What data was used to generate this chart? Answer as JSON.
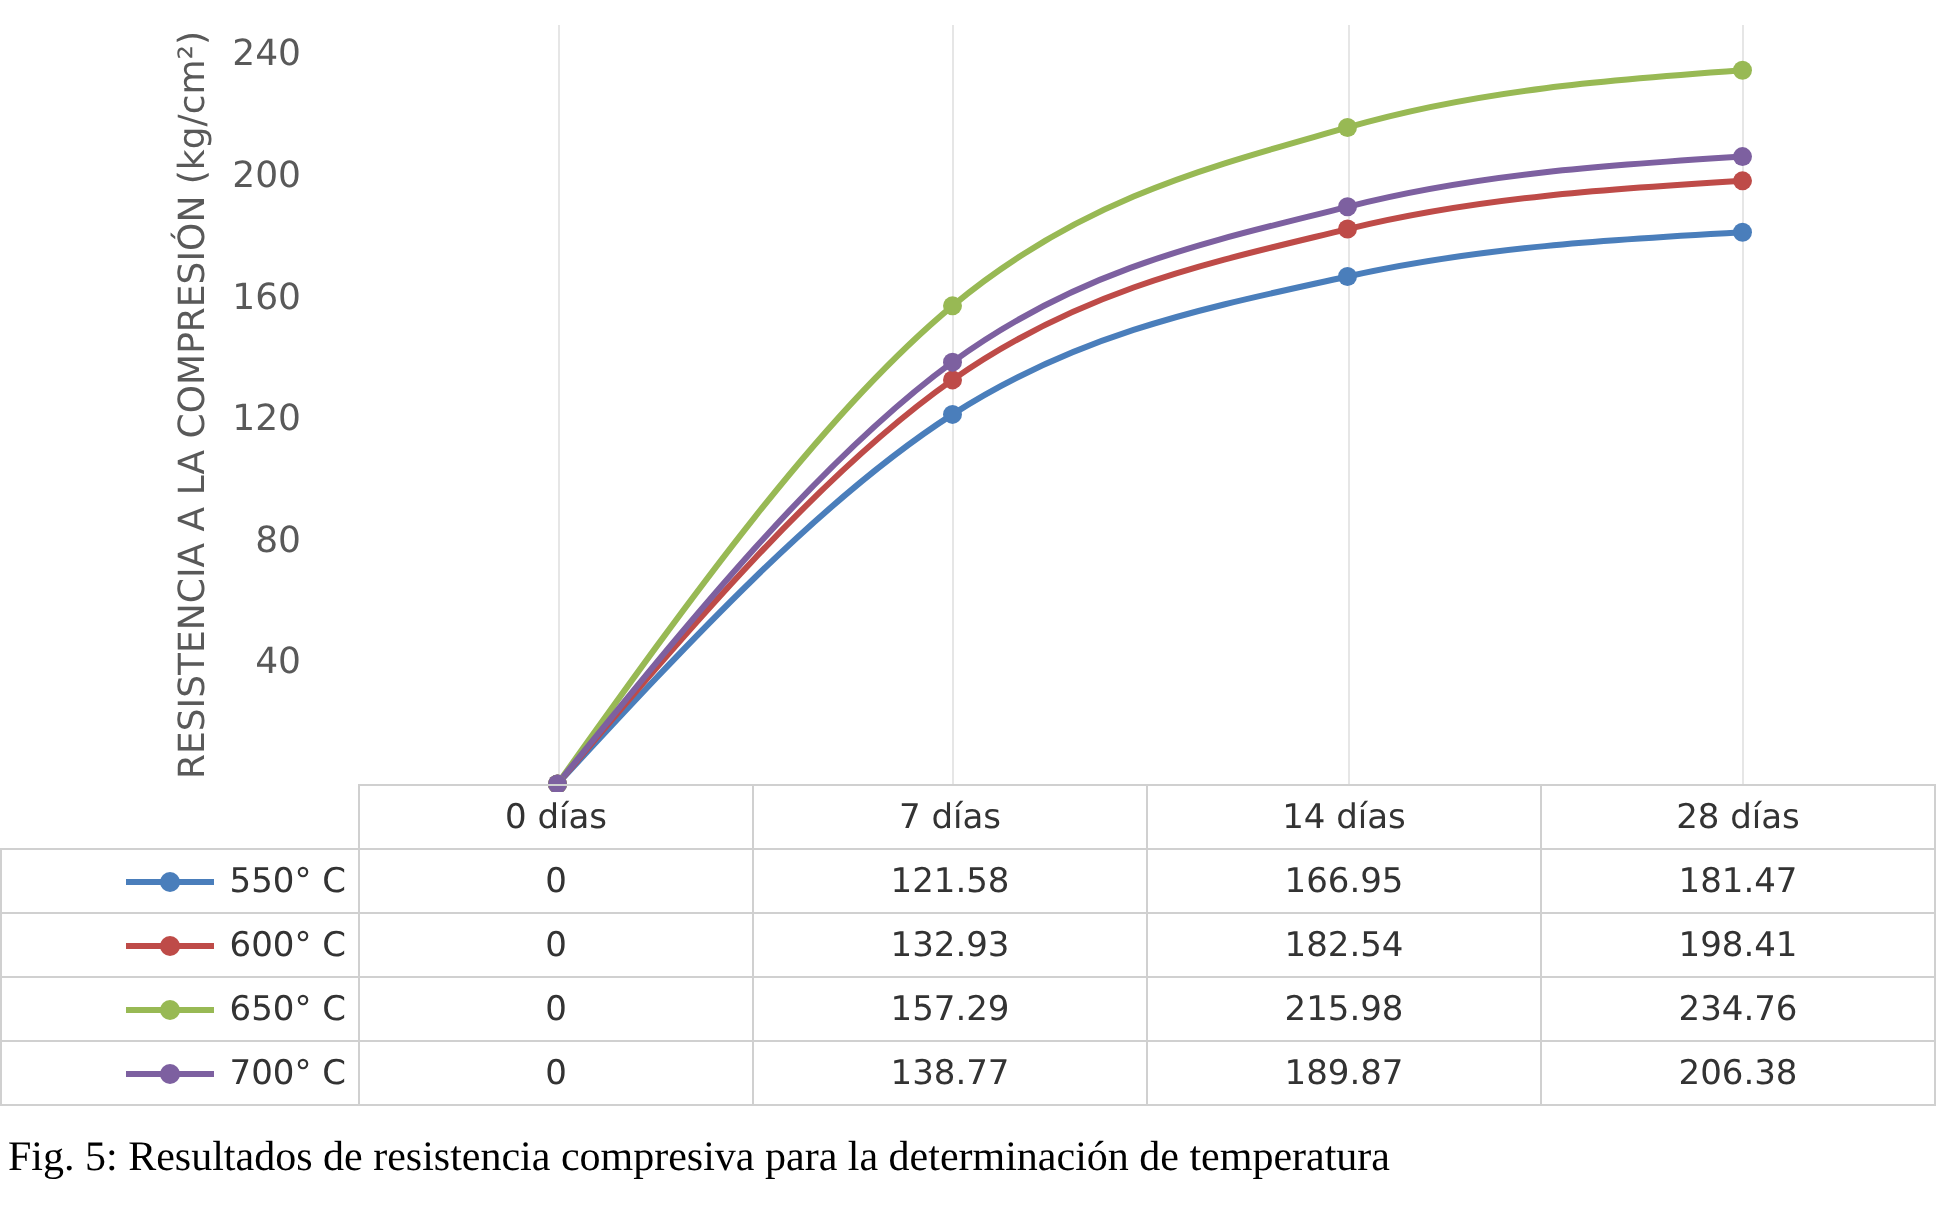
{
  "chart_data": {
    "type": "line",
    "ylabel": "RESISTENCIA A LA COMPRESIÓN (kg/cm²)",
    "categories": [
      "0 días",
      "7 días",
      "14 días",
      "28 días"
    ],
    "series": [
      {
        "name": "550° C",
        "color": "#4a7ebb",
        "values": [
          0,
          121.58,
          166.95,
          181.47
        ]
      },
      {
        "name": "600° C",
        "color": "#be4b48",
        "values": [
          0,
          132.93,
          182.54,
          198.41
        ]
      },
      {
        "name": "650° C",
        "color": "#98b954",
        "values": [
          0,
          157.29,
          215.98,
          234.76
        ]
      },
      {
        "name": "700° C",
        "color": "#7d60a0",
        "values": [
          0,
          138.77,
          189.87,
          206.38
        ]
      }
    ],
    "ylim": [
      0,
      250
    ],
    "yticks": [
      40,
      80,
      120,
      160,
      200,
      240
    ],
    "grid": "x",
    "marker": "circle",
    "legend": "bottom",
    "data_labels": true,
    "annotations": [
      "Fig.  5: Resultados de resistencia compresiva para la determinación de temperatura"
    ]
  }
}
